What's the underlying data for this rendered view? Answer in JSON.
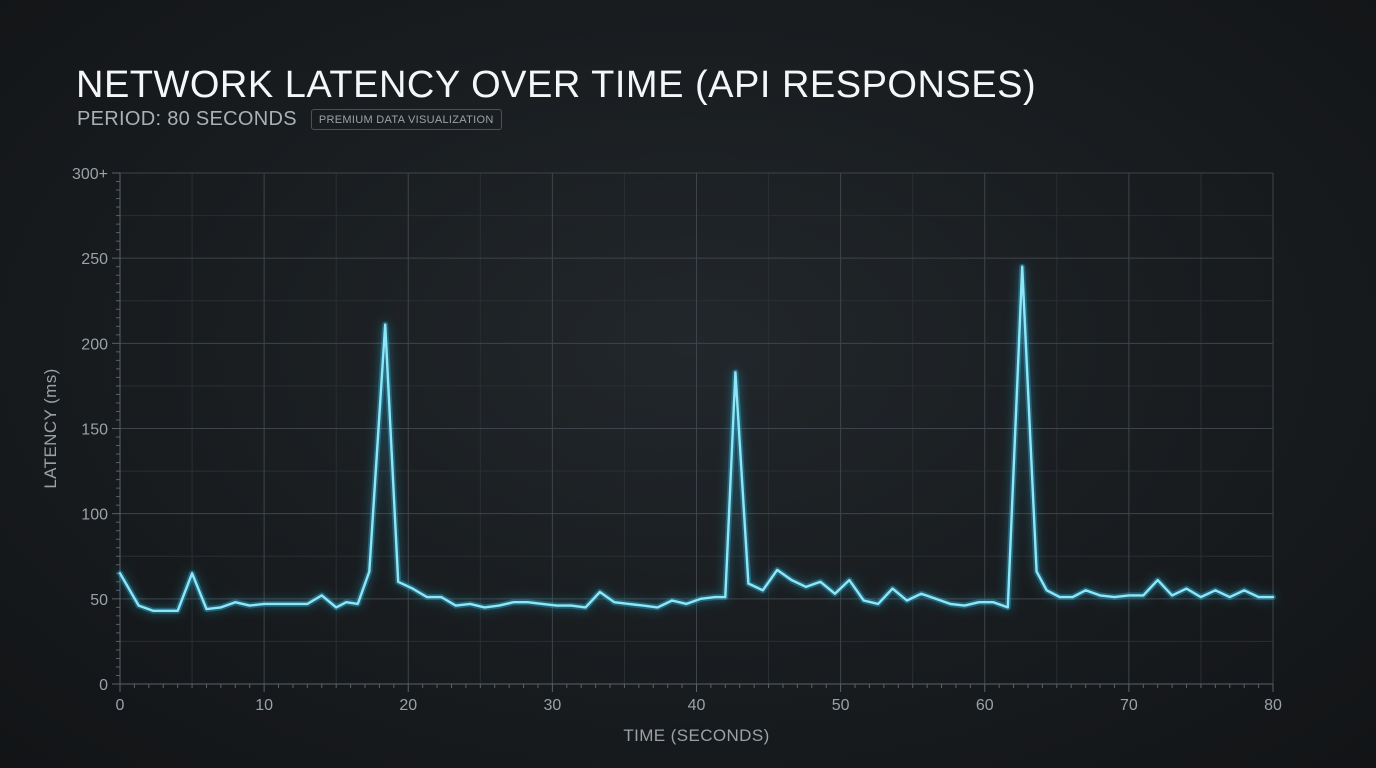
{
  "header": {
    "title": "NETWORK LATENCY OVER TIME (API RESPONSES)",
    "subtitle": "PERIOD: 80 SECONDS",
    "badge": "PREMIUM DATA VISUALIZATION"
  },
  "colors": {
    "line": "#8fe6f6",
    "glow": "#2bb8e0",
    "grid_major": "#3e4449",
    "grid_minor": "#2a2f33"
  },
  "chart_data": {
    "type": "line",
    "title": "NETWORK LATENCY OVER TIME (API RESPONSES)",
    "xlabel": "TIME (SECONDS)",
    "ylabel": "LATENCY (ms)",
    "xlim": [
      0,
      80
    ],
    "ylim": [
      0,
      300
    ],
    "x_ticks": [
      0,
      10,
      20,
      30,
      40,
      50,
      60,
      70,
      80
    ],
    "y_ticks": [
      {
        "value": 0,
        "label": "0"
      },
      {
        "value": 50,
        "label": "50"
      },
      {
        "value": 100,
        "label": "100"
      },
      {
        "value": 150,
        "label": "150"
      },
      {
        "value": 200,
        "label": "200"
      },
      {
        "value": 250,
        "label": "250"
      },
      {
        "value": 300,
        "label": "300+"
      }
    ],
    "grid": true,
    "series": [
      {
        "x": [
          0,
          1.3,
          2.3,
          3.5,
          4,
          5.0,
          6,
          7,
          8.0,
          9.0,
          10.0,
          11.0,
          12.0,
          13.0,
          14.0,
          15.0,
          15.7,
          16.5,
          17.3,
          18.4,
          19.3,
          20.3,
          21.3,
          22.3,
          23.3,
          24.3,
          25.3,
          26.3,
          27.3,
          28.3,
          29.3,
          30.3,
          31.3,
          32.3,
          33.3,
          34.3,
          35.3,
          36.3,
          37.3,
          38.3,
          39.3,
          40.3,
          41.3,
          42.0,
          42.7,
          43.6,
          44.6,
          45.6,
          46.6,
          47.6,
          48.6,
          49.6,
          50.6,
          51.6,
          52.6,
          53.6,
          54.6,
          55.6,
          56.6,
          57.6,
          58.6,
          59.6,
          60.6,
          61.6,
          62.6,
          63.6,
          64.3,
          65.2,
          66.1,
          67.0,
          68.0,
          69.0,
          70.0,
          71.0,
          72.0,
          73.0,
          74.0,
          75.0,
          76.0,
          77.0,
          78.0,
          79.0,
          80.0
        ],
        "y": [
          65,
          46,
          43,
          43,
          43,
          65,
          44,
          45,
          48,
          46,
          47,
          47,
          47,
          47,
          52,
          45,
          48,
          47,
          66,
          211,
          60,
          56,
          51,
          51,
          46,
          47,
          45,
          46,
          48,
          48,
          47,
          46,
          46,
          45,
          54,
          48,
          47,
          46,
          45,
          49,
          47,
          50,
          51,
          51,
          183,
          59,
          55,
          67,
          61,
          57,
          60,
          53,
          61,
          49,
          47,
          56,
          49,
          53,
          50,
          47,
          46,
          48,
          48,
          45,
          245,
          66,
          55,
          51,
          51,
          55,
          52,
          51,
          52,
          52,
          61,
          52,
          56,
          51,
          55,
          51,
          55,
          51,
          51
        ]
      }
    ]
  }
}
